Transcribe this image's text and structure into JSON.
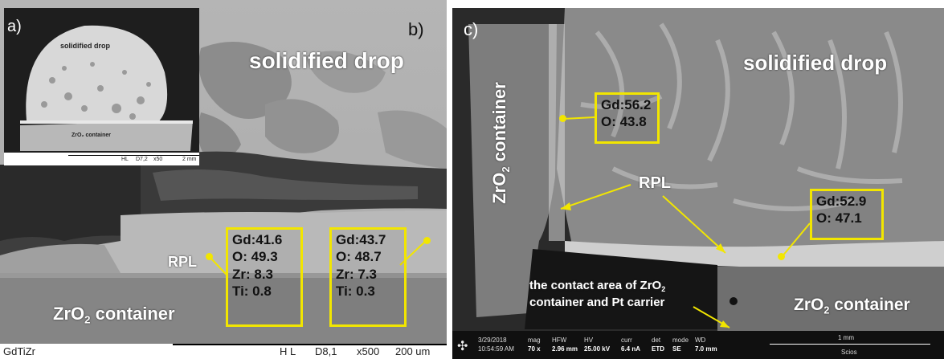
{
  "colors": {
    "annotation": "#f2e600",
    "label_text": "#ffffff"
  },
  "panel_a": {
    "letter": "a)",
    "drop_label": "solidified drop",
    "container_label": "ZrO₂ container",
    "footer_mode": "HL",
    "footer_d": "D7,2",
    "footer_mag": "x50",
    "footer_scale": "2 mm"
  },
  "panel_b": {
    "letter": "b)",
    "drop_label": "solidified drop",
    "rpl_label": "RPL",
    "container_main": "ZrO",
    "container_sub": "2",
    "container_rest": " container",
    "box1": {
      "l1": "Gd:41.6",
      "l2": "O: 49.3",
      "l3": "Zr: 8.3",
      "l4": "Ti: 0.8"
    },
    "box2": {
      "l1": "Gd:43.7",
      "l2": "O: 48.7",
      "l3": "Zr: 7.3",
      "l4": "Ti: 0.3"
    },
    "footer_sample": "GdTiZr",
    "footer_mode": "H L",
    "footer_d": "D8,1",
    "footer_mag": "x500",
    "footer_scale": "200 um"
  },
  "panel_c": {
    "letter": "c)",
    "drop_label": "solidified drop",
    "rpl_label": "RPL",
    "side_main": "ZrO",
    "side_sub": "2",
    "side_rest": " container",
    "bottom_main": "ZrO",
    "bottom_sub": "2",
    "bottom_rest": " container",
    "contact_line1": "the contact area of ZrO",
    "contact_sub": "2",
    "contact_line2": "container and Pt carrier",
    "box1": {
      "l1": "Gd:56.2",
      "l2": "O: 43.8"
    },
    "box2": {
      "l1": "Gd:52.9",
      "l2": "O: 47.1"
    },
    "footer": {
      "date": "3/29/2018",
      "time": "10:54:59 AM",
      "mag_label": "mag",
      "mag": "70 x",
      "hfw_label": "HFW",
      "hfw": "2.96 mm",
      "hv_label": "HV",
      "hv": "25.00 kV",
      "curr_label": "curr",
      "curr": "6.4 nA",
      "det_label": "det",
      "det": "ETD",
      "mode_label": "mode",
      "mode": "SE",
      "wd_label": "WD",
      "wd": "7.0 mm",
      "scale": "1 mm",
      "instrument": "Scios"
    }
  }
}
